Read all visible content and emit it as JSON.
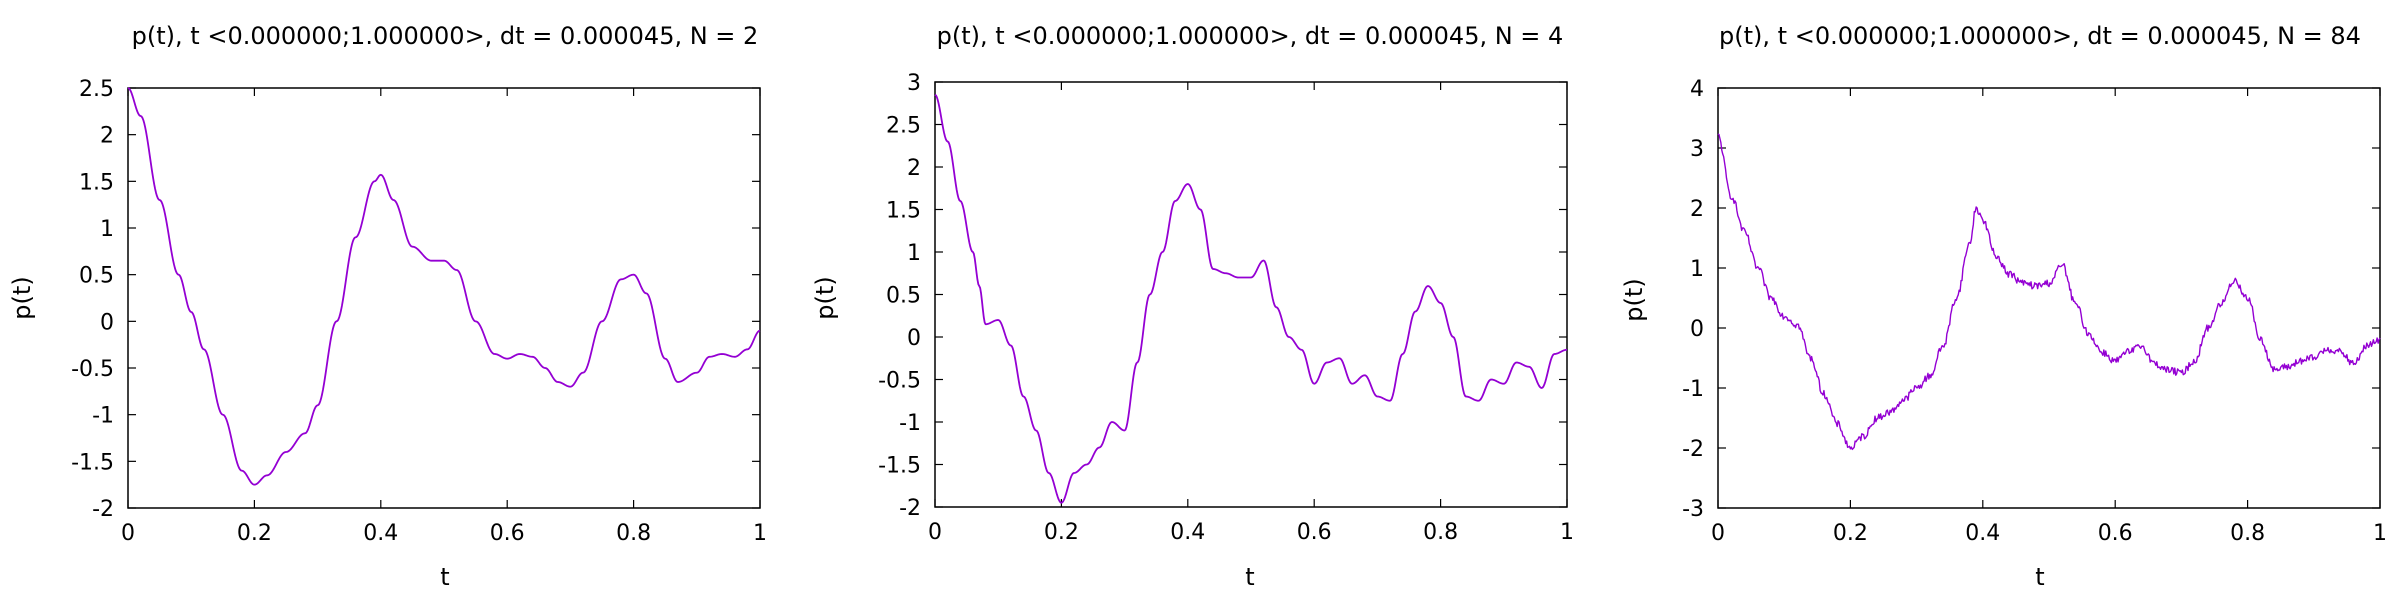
{
  "chart_data": [
    {
      "type": "line",
      "title": "p(t), t <0.000000;1.000000>, dt = 0.000045, N = 2",
      "xlabel": "t",
      "ylabel": "p(t)",
      "xlim": [
        0,
        1
      ],
      "ylim": [
        -2,
        2.5
      ],
      "xticks": [
        "0",
        "0.2",
        "0.4",
        "0.6",
        "0.8",
        "1"
      ],
      "yticks": [
        "-2",
        "-1.5",
        "-1",
        "-0.5",
        "0",
        "0.5",
        "1",
        "1.5",
        "2",
        "2.5"
      ],
      "grid": false,
      "line_color": "#9400d3",
      "noise": 0,
      "series": [
        {
          "x": [
            0,
            0.02,
            0.05,
            0.08,
            0.1,
            0.12,
            0.15,
            0.18,
            0.2,
            0.22,
            0.25,
            0.28,
            0.3,
            0.33,
            0.36,
            0.39,
            0.4,
            0.42,
            0.45,
            0.48,
            0.5,
            0.52,
            0.55,
            0.58,
            0.6,
            0.62,
            0.64,
            0.66,
            0.68,
            0.7,
            0.72,
            0.75,
            0.78,
            0.8,
            0.82,
            0.85,
            0.87,
            0.9,
            0.92,
            0.94,
            0.96,
            0.98,
            1.0
          ],
          "y": [
            2.5,
            2.2,
            1.3,
            0.5,
            0.1,
            -0.3,
            -1.0,
            -1.6,
            -1.75,
            -1.65,
            -1.4,
            -1.2,
            -0.9,
            0.0,
            0.9,
            1.5,
            1.57,
            1.3,
            0.8,
            0.65,
            0.65,
            0.55,
            0.0,
            -0.35,
            -0.4,
            -0.35,
            -0.38,
            -0.5,
            -0.65,
            -0.7,
            -0.55,
            0.0,
            0.45,
            0.5,
            0.3,
            -0.4,
            -0.65,
            -0.55,
            -0.38,
            -0.35,
            -0.38,
            -0.3,
            -0.1
          ]
        }
      ]
    },
    {
      "type": "line",
      "title": "p(t), t <0.000000;1.000000>, dt = 0.000045, N = 4",
      "xlabel": "t",
      "ylabel": "p(t)",
      "xlim": [
        0,
        1
      ],
      "ylim": [
        -2,
        3
      ],
      "xticks": [
        "0",
        "0.2",
        "0.4",
        "0.6",
        "0.8",
        "1"
      ],
      "yticks": [
        "-2",
        "-1.5",
        "-1",
        "-0.5",
        "0",
        "0.5",
        "1",
        "1.5",
        "2",
        "2.5",
        "3"
      ],
      "grid": false,
      "line_color": "#9400d3",
      "noise": 0,
      "series": [
        {
          "x": [
            0,
            0.02,
            0.04,
            0.06,
            0.07,
            0.08,
            0.1,
            0.12,
            0.14,
            0.16,
            0.18,
            0.2,
            0.22,
            0.24,
            0.26,
            0.28,
            0.3,
            0.32,
            0.34,
            0.36,
            0.38,
            0.4,
            0.42,
            0.44,
            0.46,
            0.48,
            0.5,
            0.52,
            0.54,
            0.56,
            0.58,
            0.6,
            0.62,
            0.64,
            0.66,
            0.68,
            0.7,
            0.72,
            0.74,
            0.76,
            0.78,
            0.8,
            0.82,
            0.84,
            0.86,
            0.88,
            0.9,
            0.92,
            0.94,
            0.96,
            0.98,
            1.0
          ],
          "y": [
            2.85,
            2.3,
            1.6,
            1.0,
            0.6,
            0.15,
            0.2,
            -0.1,
            -0.7,
            -1.1,
            -1.6,
            -1.95,
            -1.6,
            -1.5,
            -1.3,
            -1.0,
            -1.1,
            -0.3,
            0.5,
            1.0,
            1.6,
            1.8,
            1.5,
            0.8,
            0.75,
            0.7,
            0.7,
            0.9,
            0.35,
            0.0,
            -0.15,
            -0.55,
            -0.3,
            -0.25,
            -0.55,
            -0.45,
            -0.7,
            -0.75,
            -0.2,
            0.3,
            0.6,
            0.4,
            0.0,
            -0.7,
            -0.75,
            -0.5,
            -0.55,
            -0.3,
            -0.35,
            -0.6,
            -0.2,
            -0.15
          ]
        }
      ]
    },
    {
      "type": "line",
      "title": "p(t), t <0.000000;1.000000>, dt = 0.000045, N = 84",
      "xlabel": "t",
      "ylabel": "p(t)",
      "xlim": [
        0,
        1
      ],
      "ylim": [
        -3,
        4
      ],
      "xticks": [
        "0",
        "0.2",
        "0.4",
        "0.6",
        "0.8",
        "1"
      ],
      "yticks": [
        "-3",
        "-2",
        "-1",
        "0",
        "1",
        "2",
        "3",
        "4"
      ],
      "grid": false,
      "line_color": "#9400d3",
      "noise": 0.06,
      "series": [
        {
          "x": [
            0,
            0.02,
            0.04,
            0.06,
            0.08,
            0.1,
            0.12,
            0.14,
            0.16,
            0.18,
            0.2,
            0.22,
            0.24,
            0.26,
            0.28,
            0.3,
            0.32,
            0.34,
            0.36,
            0.38,
            0.39,
            0.4,
            0.42,
            0.44,
            0.46,
            0.48,
            0.5,
            0.52,
            0.54,
            0.56,
            0.58,
            0.6,
            0.62,
            0.64,
            0.66,
            0.68,
            0.7,
            0.72,
            0.74,
            0.76,
            0.78,
            0.8,
            0.82,
            0.84,
            0.86,
            0.88,
            0.9,
            0.92,
            0.94,
            0.96,
            0.98,
            1.0
          ],
          "y": [
            3.2,
            2.2,
            1.6,
            1.0,
            0.5,
            0.2,
            0.05,
            -0.5,
            -1.1,
            -1.6,
            -2.0,
            -1.8,
            -1.5,
            -1.4,
            -1.2,
            -1.0,
            -0.8,
            -0.3,
            0.5,
            1.4,
            2.0,
            1.8,
            1.2,
            0.9,
            0.75,
            0.7,
            0.75,
            1.05,
            0.4,
            -0.1,
            -0.4,
            -0.55,
            -0.4,
            -0.3,
            -0.6,
            -0.7,
            -0.75,
            -0.55,
            0.0,
            0.4,
            0.8,
            0.5,
            -0.2,
            -0.7,
            -0.65,
            -0.55,
            -0.5,
            -0.35,
            -0.4,
            -0.6,
            -0.3,
            -0.2
          ]
        }
      ]
    }
  ]
}
